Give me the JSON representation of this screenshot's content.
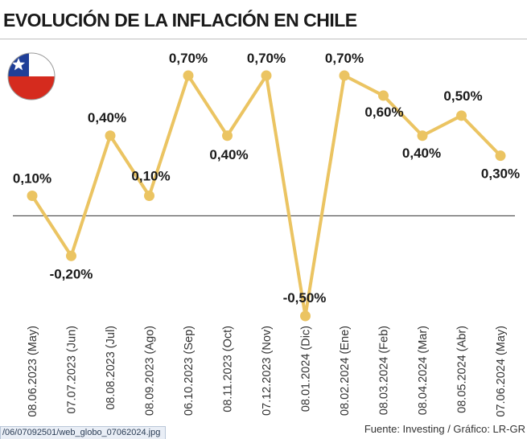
{
  "chart_data": {
    "type": "line",
    "title": "EVOLUCIÓN DE LA INFLACIÓN EN CHILE",
    "categories": [
      "08.06.2023 (May)",
      "07.07.2023 (Jun)",
      "08.08.2023 (Jul)",
      "08.09.2023 (Ago)",
      "06.10.2023 (Sep)",
      "08.11.2023 (Oct)",
      "07.12.2023 (Nov)",
      "08.01.2024 (Dic)",
      "08.02.2024 (Ene)",
      "08.03.2024 (Feb)",
      "08.04.2024 (Mar)",
      "08.05.2024 (Abr)",
      "07.06.2024 (May)"
    ],
    "series": [
      {
        "values": [
          0.1,
          -0.2,
          0.4,
          0.1,
          0.7,
          0.4,
          0.7,
          -0.5,
          0.7,
          0.6,
          0.4,
          0.5,
          0.3
        ],
        "labels": [
          "0,10%",
          "-0,20%",
          "0,40%",
          "0,10%",
          "0,70%",
          "0,40%",
          "0,70%",
          "-0,50%",
          "0,70%",
          "0,60%",
          "0,40%",
          "0,50%",
          "0,30%"
        ]
      }
    ],
    "ylim": [
      -0.5,
      0.7
    ],
    "zero_line": true,
    "grid": false,
    "line_color": "#ebc462",
    "source": "Fuente: Investing / Gráfico: LR-GR"
  },
  "flag": {
    "icon": "chile-flag-icon",
    "colors": {
      "blue": "#1f3f98",
      "red": "#d52b1e",
      "white": "#ffffff"
    }
  },
  "url_bar": {
    "text": "/06/07092501/web_globo_07062024.jpg"
  }
}
